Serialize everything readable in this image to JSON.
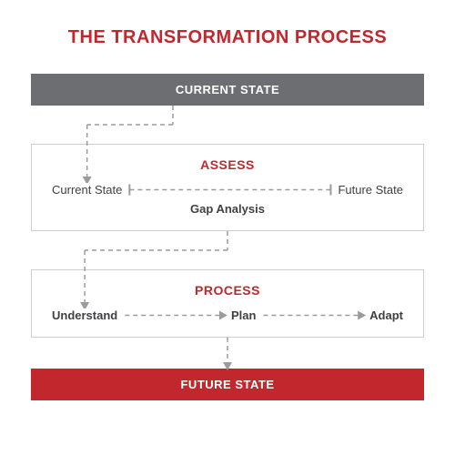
{
  "title": "THE TRANSFORMATION PROCESS",
  "colors": {
    "red": "#c1272d",
    "gray": "#6d6e71",
    "text_dark": "#414042",
    "border": "#cfcfcf",
    "dash": "#9b9b9b",
    "white": "#ffffff"
  },
  "bars": {
    "current": {
      "label": "CURRENT STATE"
    },
    "future": {
      "label": "FUTURE STATE"
    }
  },
  "assess": {
    "title": "ASSESS",
    "left": "Current State",
    "right": "Future State",
    "gap": "Gap Analysis"
  },
  "process": {
    "title": "PROCESS",
    "steps": [
      "Understand",
      "Plan",
      "Adapt"
    ]
  },
  "layout": {
    "title_fontsize": 20,
    "bar_fontsize": 13,
    "box_title_fontsize": 14,
    "item_fontsize": 13,
    "dash_array": "5,4",
    "arrow_size": 5
  }
}
